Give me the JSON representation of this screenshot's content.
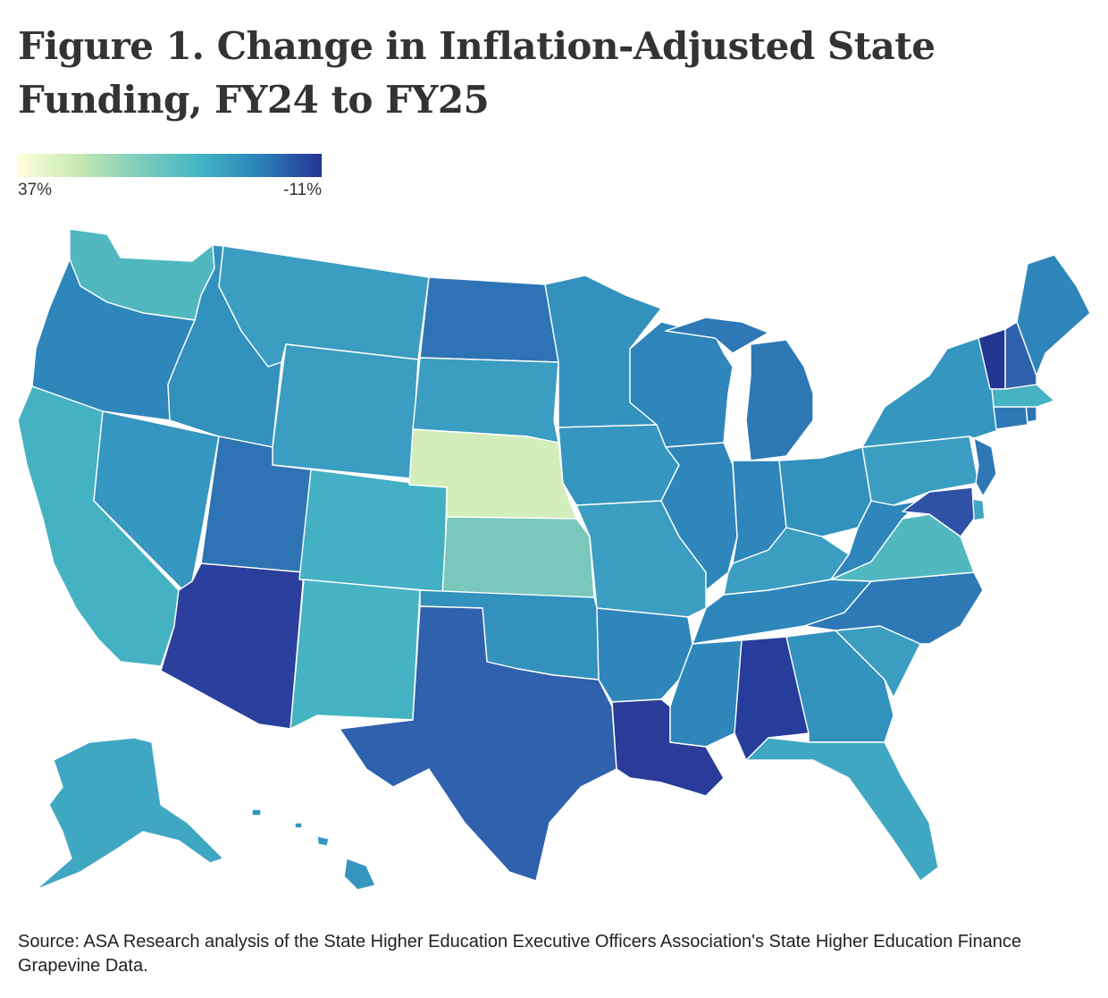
{
  "title": "Figure 1. Change in Inflation-Adjusted State Funding, FY24 to FY25",
  "legend": {
    "min_label": "37%",
    "max_label": "-11%",
    "colors": [
      "#ffffd9",
      "#c7e9b4",
      "#7fcdbb",
      "#41b6c4",
      "#2c7fb8",
      "#253494"
    ]
  },
  "source": "Source: ASA Research analysis of the State Higher Education Executive Officers Association's State Higher Education Finance Grapevine Data.",
  "map": {
    "type": "choropleth",
    "region": "United States",
    "state_colors": {
      "WA": "#52b8c0",
      "OR": "#2e86bb",
      "CA": "#45b2c4",
      "NV": "#3596c0",
      "ID": "#3391be",
      "MT": "#3b9dc1",
      "WY": "#3b9dc1",
      "UT": "#2e74b4",
      "AZ": "#2b3f9c",
      "CO": "#43b0c4",
      "NM": "#45b3c4",
      "ND": "#2e74b4",
      "SD": "#3b9dc1",
      "NE": "#d3eebb",
      "KS": "#79c8bb",
      "OK": "#3391be",
      "TX": "#2f61ad",
      "MN": "#3391be",
      "IA": "#3596c0",
      "MO": "#3b9dc1",
      "AR": "#2e86bb",
      "LA": "#2b3b99",
      "WI": "#2e86bb",
      "IL": "#2e86bb",
      "MS": "#2e86bb",
      "MI": "#2e78b6",
      "IN": "#2e86bb",
      "OH": "#3391be",
      "KY": "#3b9dc1",
      "TN": "#2e86bb",
      "AL": "#273d9b",
      "WV": "#2e86bb",
      "GA": "#3391be",
      "FL": "#40a7c3",
      "SC": "#3a9dc1",
      "NC": "#2e78b6",
      "VA": "#52b8c0",
      "PA": "#3b9dc1",
      "NY": "#3596c0",
      "ME": "#2e86bb",
      "VT": "#223591",
      "NH": "#2f61ad",
      "MA": "#45b3c4",
      "RI": "#2e74b4",
      "CT": "#2e78b6",
      "NJ": "#2e78b6",
      "DE": "#40a7c3",
      "MD": "#2f52a6",
      "AK": "#40a7c3",
      "HI": "#3596c0"
    }
  }
}
